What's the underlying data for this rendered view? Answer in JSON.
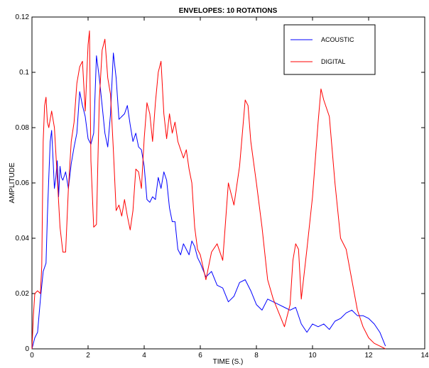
{
  "chart_data": {
    "type": "line",
    "title": "ENVELOPES: 10 ROTATIONS",
    "xlabel": "TIME (S.)",
    "ylabel": "AMPLITUDE",
    "xlim": [
      0,
      14
    ],
    "ylim": [
      0,
      0.12
    ],
    "xticks": [
      0,
      2,
      4,
      6,
      8,
      10,
      12,
      14
    ],
    "yticks": [
      0,
      0.02,
      0.04,
      0.06,
      0.08,
      0.1,
      0.12
    ],
    "xtick_labels": [
      "0",
      "2",
      "4",
      "6",
      "8",
      "10",
      "12",
      "14"
    ],
    "ytick_labels": [
      "0",
      "0.02",
      "0.04",
      "0.06",
      "0.08",
      "0.1",
      "0.12"
    ],
    "grid": false,
    "legend_position": "top-right",
    "series": [
      {
        "name": "ACOUSTIC",
        "color": "#0000ff",
        "x": [
          0,
          0.1,
          0.2,
          0.3,
          0.4,
          0.5,
          0.55,
          0.6,
          0.65,
          0.7,
          0.75,
          0.8,
          0.85,
          0.9,
          0.95,
          1.0,
          1.05,
          1.1,
          1.2,
          1.3,
          1.4,
          1.5,
          1.6,
          1.7,
          1.8,
          1.9,
          2.0,
          2.1,
          2.2,
          2.3,
          2.4,
          2.5,
          2.6,
          2.7,
          2.8,
          2.9,
          3.0,
          3.1,
          3.2,
          3.3,
          3.4,
          3.5,
          3.6,
          3.7,
          3.8,
          3.9,
          4.0,
          4.1,
          4.2,
          4.3,
          4.4,
          4.5,
          4.6,
          4.7,
          4.8,
          4.9,
          5.0,
          5.1,
          5.2,
          5.3,
          5.4,
          5.5,
          5.6,
          5.7,
          5.8,
          5.9,
          6.0,
          6.2,
          6.4,
          6.6,
          6.8,
          7.0,
          7.2,
          7.4,
          7.6,
          7.8,
          8.0,
          8.2,
          8.4,
          8.6,
          8.8,
          9.0,
          9.2,
          9.4,
          9.6,
          9.8,
          10.0,
          10.2,
          10.4,
          10.6,
          10.8,
          11.0,
          11.2,
          11.4,
          11.6,
          11.8,
          12.0,
          12.2,
          12.4,
          12.6
        ],
        "values": [
          0.0,
          0.004,
          0.006,
          0.018,
          0.028,
          0.031,
          0.048,
          0.062,
          0.075,
          0.079,
          0.069,
          0.058,
          0.062,
          0.068,
          0.055,
          0.066,
          0.062,
          0.061,
          0.064,
          0.058,
          0.067,
          0.073,
          0.078,
          0.093,
          0.088,
          0.084,
          0.076,
          0.074,
          0.078,
          0.106,
          0.098,
          0.088,
          0.078,
          0.073,
          0.085,
          0.107,
          0.098,
          0.083,
          0.084,
          0.085,
          0.088,
          0.081,
          0.075,
          0.078,
          0.073,
          0.072,
          0.066,
          0.054,
          0.053,
          0.055,
          0.054,
          0.062,
          0.058,
          0.064,
          0.061,
          0.051,
          0.046,
          0.046,
          0.036,
          0.034,
          0.038,
          0.036,
          0.034,
          0.039,
          0.037,
          0.033,
          0.031,
          0.026,
          0.028,
          0.023,
          0.022,
          0.017,
          0.019,
          0.024,
          0.025,
          0.021,
          0.016,
          0.014,
          0.018,
          0.017,
          0.016,
          0.015,
          0.014,
          0.015,
          0.009,
          0.006,
          0.009,
          0.008,
          0.009,
          0.007,
          0.01,
          0.011,
          0.013,
          0.014,
          0.012,
          0.012,
          0.011,
          0.009,
          0.006,
          0.001
        ]
      },
      {
        "name": "DIGITAL",
        "color": "#ff0000",
        "x": [
          0,
          0.05,
          0.1,
          0.2,
          0.3,
          0.35,
          0.4,
          0.45,
          0.5,
          0.55,
          0.6,
          0.7,
          0.8,
          0.9,
          1.0,
          1.1,
          1.2,
          1.3,
          1.4,
          1.5,
          1.6,
          1.7,
          1.8,
          1.9,
          2.0,
          2.05,
          2.1,
          2.2,
          2.3,
          2.4,
          2.5,
          2.6,
          2.7,
          2.8,
          2.9,
          3.0,
          3.1,
          3.2,
          3.3,
          3.4,
          3.5,
          3.6,
          3.7,
          3.8,
          3.9,
          4.0,
          4.1,
          4.2,
          4.3,
          4.4,
          4.5,
          4.6,
          4.7,
          4.8,
          4.9,
          5.0,
          5.1,
          5.2,
          5.3,
          5.4,
          5.5,
          5.6,
          5.7,
          5.8,
          5.9,
          6.0,
          6.2,
          6.4,
          6.6,
          6.8,
          7.0,
          7.2,
          7.4,
          7.6,
          7.7,
          7.8,
          8.0,
          8.2,
          8.4,
          8.6,
          8.8,
          9.0,
          9.2,
          9.3,
          9.4,
          9.5,
          9.6,
          9.8,
          10.0,
          10.2,
          10.3,
          10.4,
          10.6,
          10.8,
          11.0,
          11.2,
          11.4,
          11.6,
          11.8,
          12.0,
          12.2,
          12.4,
          12.6
        ],
        "values": [
          0.0,
          0.012,
          0.02,
          0.021,
          0.02,
          0.03,
          0.075,
          0.088,
          0.091,
          0.082,
          0.08,
          0.086,
          0.08,
          0.062,
          0.044,
          0.035,
          0.035,
          0.058,
          0.075,
          0.082,
          0.096,
          0.102,
          0.104,
          0.086,
          0.11,
          0.115,
          0.068,
          0.044,
          0.045,
          0.09,
          0.108,
          0.112,
          0.098,
          0.092,
          0.072,
          0.05,
          0.052,
          0.048,
          0.054,
          0.048,
          0.043,
          0.05,
          0.065,
          0.064,
          0.058,
          0.076,
          0.089,
          0.085,
          0.075,
          0.089,
          0.1,
          0.104,
          0.085,
          0.076,
          0.085,
          0.078,
          0.082,
          0.075,
          0.072,
          0.069,
          0.072,
          0.065,
          0.06,
          0.044,
          0.036,
          0.034,
          0.025,
          0.035,
          0.038,
          0.032,
          0.06,
          0.052,
          0.066,
          0.09,
          0.088,
          0.075,
          0.06,
          0.044,
          0.025,
          0.018,
          0.013,
          0.008,
          0.016,
          0.032,
          0.038,
          0.036,
          0.018,
          0.036,
          0.055,
          0.082,
          0.094,
          0.09,
          0.084,
          0.06,
          0.04,
          0.036,
          0.025,
          0.014,
          0.008,
          0.004,
          0.002,
          0.001,
          0.0
        ]
      }
    ]
  }
}
